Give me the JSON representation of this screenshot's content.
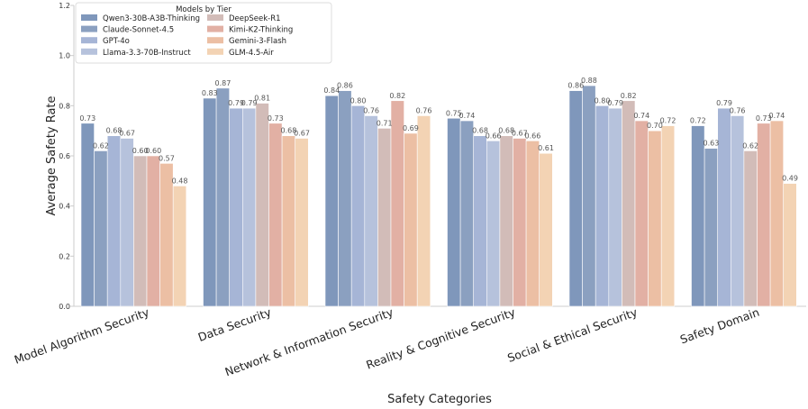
{
  "chart_data": {
    "type": "bar",
    "xlabel": "Safety Categories",
    "ylabel": "Average Safety Rate",
    "ylim": [
      0,
      1.2
    ],
    "yticks": [
      "0.0",
      "0.2",
      "0.4",
      "0.6",
      "0.8",
      "1.0",
      "1.2"
    ],
    "grid": false,
    "legend": {
      "title": "Models by Tier",
      "placement": "top-left",
      "columns": 2
    },
    "categories": [
      "Model Algorithm Security",
      "Data Security",
      "Network & Information Security",
      "Reality & Cognitive Security",
      "Social & Ethical Security",
      "Safety Domain"
    ],
    "series": [
      {
        "name": "Qwen3-30B-A3B-Thinking",
        "color": "#7f97bb",
        "values": [
          0.73,
          0.83,
          0.84,
          0.75,
          0.86,
          0.72
        ],
        "labels": [
          "0.73",
          "0.83",
          "0.84",
          "0.75",
          "0.86",
          "0.72"
        ]
      },
      {
        "name": "Claude-Sonnet-4.5",
        "color": "#8ba0c0",
        "values": [
          0.62,
          0.87,
          0.86,
          0.74,
          0.88,
          0.63
        ],
        "labels": [
          "0.62",
          "0.87",
          "0.86",
          "0.74",
          "0.88",
          "0.63"
        ]
      },
      {
        "name": "GPT-4o",
        "color": "#a6b5d6",
        "values": [
          0.68,
          0.79,
          0.8,
          0.68,
          0.8,
          0.79
        ],
        "labels": [
          "0.68",
          "0.79",
          "0.80",
          "0.68",
          "0.80",
          "0.79"
        ]
      },
      {
        "name": "Llama-3.3-70B-Instruct",
        "color": "#b6c2dc",
        "values": [
          0.67,
          0.79,
          0.76,
          0.66,
          0.79,
          0.76
        ],
        "labels": [
          "0.67",
          "0.79",
          "0.76",
          "0.66",
          "0.79",
          "0.76"
        ]
      },
      {
        "name": "DeepSeek-R1",
        "color": "#d2bcb8",
        "values": [
          0.6,
          0.81,
          0.71,
          0.68,
          0.82,
          0.62
        ],
        "labels": [
          "0.60",
          "0.81",
          "0.71",
          "0.68",
          "0.82",
          "0.62"
        ]
      },
      {
        "name": "Kimi-K2-Thinking",
        "color": "#e2b0a4",
        "values": [
          0.6,
          0.73,
          0.82,
          0.67,
          0.74,
          0.73
        ],
        "labels": [
          "0.60",
          "0.73",
          "0.82",
          "0.67",
          "0.74",
          "0.73"
        ]
      },
      {
        "name": "Gemini-3-Flash",
        "color": "#ecbfa4",
        "values": [
          0.57,
          0.68,
          0.69,
          0.66,
          0.7,
          0.74
        ],
        "labels": [
          "0.57",
          "0.68",
          "0.69",
          "0.66",
          "0.70",
          "0.74"
        ]
      },
      {
        "name": "GLM-4.5-Air",
        "color": "#f3d3b4",
        "values": [
          0.48,
          0.67,
          0.76,
          0.61,
          0.72,
          0.49
        ],
        "labels": [
          "0.48",
          "0.67",
          "0.76",
          "0.61",
          "0.72",
          "0.49"
        ]
      }
    ]
  }
}
